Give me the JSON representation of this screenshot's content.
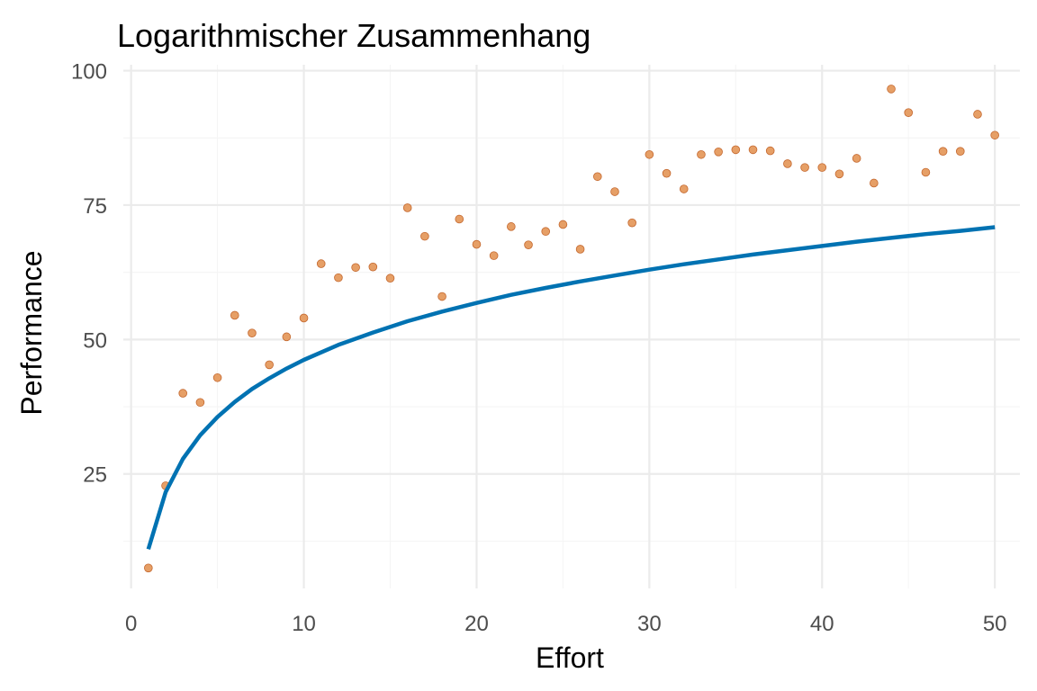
{
  "chart_data": {
    "type": "scatter",
    "title": "Logarithmischer Zusammenhang",
    "xlabel": "Effort",
    "ylabel": "Performance",
    "xlim": [
      -0.45,
      51.45
    ],
    "ylim": [
      3.7,
      101.1
    ],
    "x_ticks": [
      0,
      10,
      20,
      30,
      40,
      50
    ],
    "y_ticks": [
      25,
      50,
      75,
      100
    ],
    "grid": true,
    "legend": "none",
    "colors": {
      "points_fill": "#E69F66",
      "points_stroke": "#C4682F",
      "line": "#0072B2",
      "grid_major": "#EBEBEB",
      "grid_minor": "#F5F5F5"
    },
    "series": [
      {
        "kind": "points",
        "x": [
          1,
          2,
          3,
          4,
          5,
          6,
          7,
          8,
          9,
          10,
          11,
          12,
          13,
          14,
          15,
          16,
          17,
          18,
          19,
          20,
          21,
          22,
          23,
          24,
          25,
          26,
          27,
          28,
          29,
          30,
          31,
          32,
          33,
          34,
          35,
          36,
          37,
          38,
          39,
          40,
          41,
          42,
          43,
          44,
          45,
          46,
          47,
          48,
          49,
          50
        ],
        "y": [
          7.5,
          22.8,
          40.0,
          38.3,
          42.9,
          54.5,
          51.2,
          45.3,
          50.5,
          54.0,
          64.1,
          61.5,
          63.4,
          63.5,
          61.4,
          74.5,
          69.2,
          58.0,
          72.4,
          67.7,
          65.6,
          71.0,
          67.6,
          70.1,
          71.4,
          66.8,
          80.3,
          77.5,
          71.7,
          84.4,
          80.9,
          78.0,
          84.4,
          84.9,
          85.3,
          85.3,
          85.1,
          82.7,
          82.0,
          82.0,
          80.8,
          83.7,
          79.1,
          96.6,
          92.2,
          81.1,
          85.0,
          85.0,
          91.9,
          88.0
        ]
      },
      {
        "kind": "line",
        "x": [
          1,
          2,
          3,
          4,
          5,
          6,
          7,
          8,
          9,
          10,
          12,
          14,
          16,
          18,
          20,
          22,
          24,
          26,
          28,
          30,
          32,
          34,
          36,
          38,
          40,
          42,
          44,
          46,
          48,
          50
        ],
        "y": [
          11.0,
          21.6,
          27.8,
          32.2,
          35.6,
          38.4,
          40.8,
          42.8,
          44.6,
          46.2,
          49.0,
          51.3,
          53.4,
          55.2,
          56.8,
          58.3,
          59.6,
          60.8,
          61.9,
          63.0,
          64.0,
          64.9,
          65.8,
          66.6,
          67.4,
          68.2,
          68.9,
          69.6,
          70.2,
          70.9
        ]
      }
    ]
  }
}
